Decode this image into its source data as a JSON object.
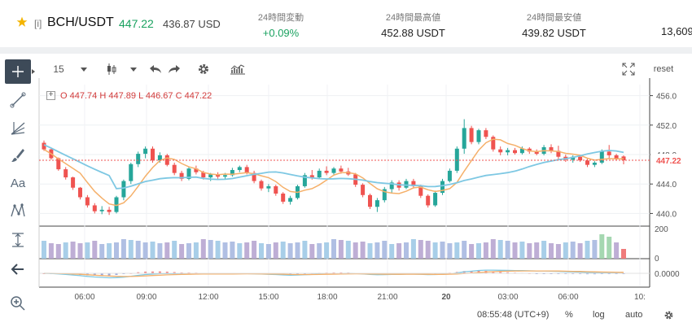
{
  "header": {
    "favorite_icon": "star-icon",
    "pair_prefix": "[i]",
    "pair": "BCH/USDT",
    "last_price": "447.22",
    "usd_price": "436.87 USD",
    "stats": [
      {
        "label": "24時間変動",
        "value": "+0.09%"
      },
      {
        "label": "24時間最高値",
        "value": "452.88 USDT"
      },
      {
        "label": "24時間最安値",
        "value": "439.82 USDT"
      }
    ],
    "overflow_value": "13,609"
  },
  "toolbar": {
    "interval": "15",
    "reset": "reset"
  },
  "legend": {
    "o_label": "O",
    "o": "447.74",
    "h_label": "H",
    "h": "447.89",
    "l_label": "L",
    "l": "446.67",
    "c_label": "C",
    "c": "447.22"
  },
  "footer": {
    "time": "08:55:48",
    "tz": "(UTC+9)",
    "percent": "%",
    "log": "log",
    "auto": "auto"
  },
  "colors": {
    "up": "#26a69a",
    "down": "#ef5350",
    "ma_blue": "#7ec8e3",
    "ma_orange": "#f5b06a",
    "accent_green": "#1aa260"
  },
  "chart_data": {
    "type": "candlestick",
    "price_axis": [
      456.0,
      452.0,
      448.0,
      444.0,
      440.0
    ],
    "price_label": "447.22",
    "ylim": [
      438.5,
      457.5
    ],
    "volume_axis": [
      "200",
      "0"
    ],
    "macd_axis": "0.0000",
    "time_axis": [
      "06:00",
      "09:00",
      "12:00",
      "15:00",
      "18:00",
      "21:00",
      "20",
      "03:00",
      "06:00",
      "10:"
    ],
    "ohlc": [
      [
        449.6,
        449.9,
        448.5,
        448.7
      ],
      [
        448.7,
        448.8,
        447.3,
        447.5
      ],
      [
        447.5,
        447.6,
        445.8,
        446.0
      ],
      [
        446.0,
        446.3,
        444.6,
        444.9
      ],
      [
        444.9,
        445.0,
        443.2,
        443.5
      ],
      [
        443.5,
        443.6,
        441.9,
        442.2
      ],
      [
        442.2,
        442.5,
        440.8,
        441.1
      ],
      [
        441.1,
        441.4,
        440.0,
        440.3
      ],
      [
        440.3,
        441.0,
        439.9,
        440.5
      ],
      [
        440.5,
        440.9,
        439.8,
        440.2
      ],
      [
        440.2,
        442.4,
        440.0,
        442.2
      ],
      [
        442.2,
        444.6,
        441.8,
        444.4
      ],
      [
        444.4,
        446.9,
        444.0,
        446.7
      ],
      [
        446.7,
        448.4,
        446.3,
        448.1
      ],
      [
        448.1,
        449.1,
        447.5,
        448.8
      ],
      [
        448.8,
        449.1,
        446.9,
        447.2
      ],
      [
        447.2,
        448.3,
        446.9,
        447.9
      ],
      [
        447.9,
        448.1,
        446.4,
        446.6
      ],
      [
        446.6,
        446.9,
        445.2,
        445.5
      ],
      [
        445.5,
        445.8,
        444.4,
        444.7
      ],
      [
        444.7,
        446.3,
        444.5,
        446.1
      ],
      [
        446.1,
        446.5,
        445.3,
        445.6
      ],
      [
        445.6,
        445.8,
        444.6,
        444.9
      ],
      [
        444.9,
        445.5,
        444.4,
        445.3
      ],
      [
        445.3,
        445.6,
        444.7,
        445.0
      ],
      [
        445.0,
        445.5,
        444.6,
        445.2
      ],
      [
        445.2,
        446.2,
        445.0,
        445.9
      ],
      [
        445.9,
        446.5,
        445.6,
        446.3
      ],
      [
        446.3,
        446.6,
        445.3,
        445.5
      ],
      [
        445.5,
        445.8,
        444.1,
        444.4
      ],
      [
        444.4,
        444.6,
        443.1,
        443.4
      ],
      [
        443.4,
        444.0,
        442.9,
        443.7
      ],
      [
        443.7,
        443.9,
        442.4,
        442.7
      ],
      [
        442.7,
        442.9,
        441.3,
        441.6
      ],
      [
        441.6,
        442.4,
        441.2,
        442.1
      ],
      [
        442.1,
        443.9,
        441.9,
        443.7
      ],
      [
        443.7,
        445.5,
        443.5,
        445.2
      ],
      [
        445.2,
        445.9,
        444.6,
        444.9
      ],
      [
        444.9,
        446.1,
        444.7,
        445.8
      ],
      [
        445.8,
        446.4,
        445.2,
        445.5
      ],
      [
        445.5,
        446.3,
        445.3,
        446.1
      ],
      [
        446.1,
        446.5,
        445.4,
        445.7
      ],
      [
        445.7,
        446.2,
        445.1,
        445.3
      ],
      [
        445.3,
        445.5,
        443.6,
        443.9
      ],
      [
        443.9,
        444.1,
        442.2,
        442.5
      ],
      [
        442.5,
        442.7,
        440.6,
        440.9
      ],
      [
        440.9,
        442.1,
        440.2,
        441.8
      ],
      [
        441.8,
        443.6,
        441.5,
        443.3
      ],
      [
        443.3,
        444.5,
        442.8,
        444.2
      ],
      [
        444.2,
        444.5,
        443.1,
        443.5
      ],
      [
        443.5,
        444.7,
        443.3,
        444.4
      ],
      [
        444.4,
        444.7,
        443.4,
        443.7
      ],
      [
        443.7,
        443.9,
        442.1,
        442.4
      ],
      [
        442.4,
        442.6,
        440.8,
        441.1
      ],
      [
        441.1,
        443.1,
        440.9,
        442.8
      ],
      [
        442.8,
        444.7,
        442.5,
        444.4
      ],
      [
        444.4,
        446.1,
        444.2,
        445.8
      ],
      [
        445.8,
        449.1,
        445.5,
        448.8
      ],
      [
        448.8,
        452.8,
        448.1,
        451.6
      ],
      [
        451.6,
        451.9,
        449.4,
        449.7
      ],
      [
        449.7,
        451.5,
        449.4,
        451.3
      ],
      [
        451.3,
        451.6,
        450.1,
        450.4
      ],
      [
        450.4,
        450.6,
        448.4,
        448.7
      ],
      [
        448.7,
        449.1,
        447.9,
        448.3
      ],
      [
        448.3,
        448.9,
        447.9,
        448.6
      ],
      [
        448.6,
        448.9,
        448.0,
        448.2
      ],
      [
        448.2,
        449.1,
        448.0,
        448.8
      ],
      [
        448.8,
        449.0,
        448.1,
        448.4
      ],
      [
        448.4,
        448.7,
        447.9,
        448.1
      ],
      [
        448.1,
        449.3,
        447.9,
        449.0
      ],
      [
        449.0,
        449.4,
        448.2,
        448.5
      ],
      [
        448.5,
        449.2,
        447.4,
        447.7
      ],
      [
        447.7,
        448.0,
        447.0,
        447.3
      ],
      [
        447.3,
        447.9,
        446.9,
        447.7
      ],
      [
        447.7,
        448.0,
        447.0,
        447.2
      ],
      [
        447.2,
        447.4,
        446.3,
        446.6
      ],
      [
        446.6,
        447.1,
        446.3,
        446.9
      ],
      [
        446.9,
        448.7,
        446.7,
        448.4
      ],
      [
        448.4,
        449.3,
        447.5,
        447.9
      ],
      [
        447.9,
        448.1,
        447.2,
        447.5
      ],
      [
        447.74,
        447.89,
        446.67,
        447.22
      ]
    ],
    "volume": [
      110,
      95,
      90,
      100,
      105,
      95,
      100,
      110,
      90,
      95,
      100,
      120,
      115,
      110,
      100,
      105,
      95,
      100,
      110,
      90,
      95,
      100,
      120,
      115,
      110,
      100,
      105,
      95,
      100,
      110,
      95,
      90,
      100,
      105,
      95,
      100,
      110,
      90,
      95,
      100,
      120,
      115,
      110,
      100,
      105,
      95,
      100,
      110,
      90,
      95,
      100,
      120,
      115,
      110,
      100,
      105,
      95,
      100,
      110,
      90,
      95,
      100,
      120,
      115,
      110,
      100,
      105,
      95,
      100,
      110,
      95,
      90,
      100,
      105,
      95,
      110,
      115,
      150,
      135,
      100,
      60
    ]
  }
}
